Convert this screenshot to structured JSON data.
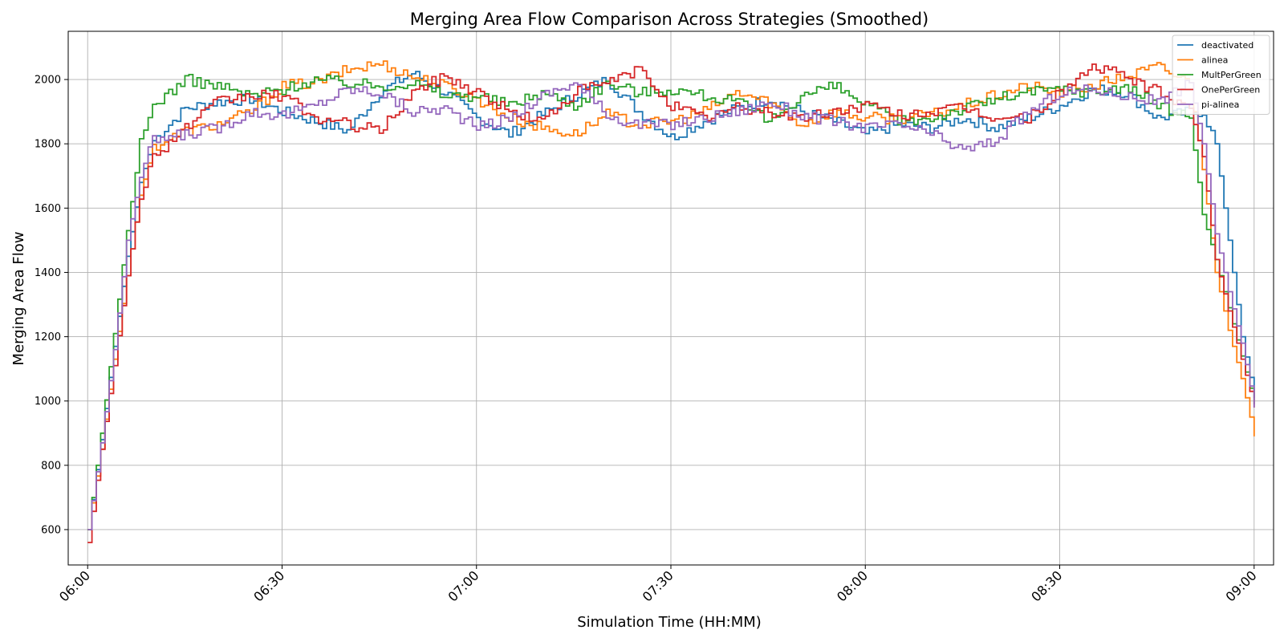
{
  "chart_data": {
    "type": "line",
    "step": true,
    "title": "Merging Area Flow Comparison Across Strategies (Smoothed)",
    "xlabel": "Simulation Time (HH:MM)",
    "ylabel": "Merging Area Flow",
    "x_ticks": [
      "06:00",
      "06:30",
      "07:00",
      "07:30",
      "08:00",
      "08:30",
      "09:00"
    ],
    "x_range_minutes": [
      -3,
      63,
      66,
      69,
      72,
      75,
      78
    ],
    "xlim": [
      "05:57",
      "09:03"
    ],
    "ylim": [
      490,
      2150
    ],
    "y_ticks": [
      600,
      800,
      1000,
      1200,
      1400,
      1600,
      1800,
      2000
    ],
    "grid": true,
    "legend_position": "top-right",
    "x_keys": [
      "06:00",
      "06:02",
      "06:04",
      "06:06",
      "06:08",
      "06:10",
      "06:15",
      "06:20",
      "06:25",
      "06:30",
      "06:35",
      "06:40",
      "06:45",
      "06:50",
      "06:55",
      "07:00",
      "07:05",
      "07:10",
      "07:15",
      "07:20",
      "07:25",
      "07:30",
      "07:35",
      "07:40",
      "07:45",
      "07:50",
      "07:55",
      "08:00",
      "08:05",
      "08:10",
      "08:15",
      "08:20",
      "08:25",
      "08:30",
      "08:35",
      "08:40",
      "08:45",
      "08:50",
      "08:52",
      "08:54",
      "08:56",
      "08:58",
      "09:00"
    ],
    "series": [
      {
        "name": "deactivated",
        "color": "#1f77b4",
        "values": [
          600,
          880,
          1170,
          1450,
          1680,
          1810,
          1910,
          1930,
          1940,
          1900,
          1870,
          1840,
          1960,
          2020,
          1960,
          1880,
          1830,
          1890,
          1950,
          2000,
          1900,
          1820,
          1870,
          1910,
          1940,
          1900,
          1870,
          1830,
          1860,
          1850,
          1880,
          1850,
          1880,
          1920,
          1970,
          1960,
          1880,
          1900,
          1900,
          1800,
          1500,
          1200,
          1010
        ]
      },
      {
        "name": "alinea",
        "color": "#ff7f0e",
        "values": [
          600,
          850,
          1130,
          1390,
          1640,
          1790,
          1840,
          1860,
          1900,
          1980,
          1990,
          2030,
          2050,
          2010,
          1980,
          1940,
          1880,
          1850,
          1830,
          1890,
          1860,
          1870,
          1900,
          1960,
          1930,
          1860,
          1900,
          1880,
          1880,
          1890,
          1920,
          1950,
          1980,
          1960,
          1980,
          2010,
          2040,
          1990,
          1720,
          1400,
          1220,
          1070,
          890
        ]
      },
      {
        "name": "MultPerGreen",
        "color": "#2ca02c",
        "values": [
          600,
          900,
          1210,
          1530,
          1800,
          1920,
          2000,
          1980,
          1950,
          1970,
          2000,
          1990,
          1980,
          1990,
          1950,
          1950,
          1920,
          1960,
          1920,
          1990,
          1960,
          1970,
          1950,
          1930,
          1870,
          1950,
          1980,
          1920,
          1870,
          1880,
          1910,
          1940,
          1960,
          1970,
          1960,
          1980,
          1920,
          1880,
          1580,
          1440,
          1290,
          1140,
          990
        ]
      },
      {
        "name": "OnePerGreen",
        "color": "#d62728",
        "values": [
          560,
          850,
          1110,
          1390,
          1640,
          1760,
          1850,
          1930,
          1950,
          1950,
          1880,
          1860,
          1840,
          1960,
          2010,
          1960,
          1900,
          1870,
          1960,
          1990,
          2030,
          1920,
          1880,
          1910,
          1900,
          1880,
          1900,
          1920,
          1890,
          1900,
          1910,
          1880,
          1880,
          1960,
          2040,
          2010,
          1960,
          1910,
          1760,
          1440,
          1280,
          1130,
          980
        ]
      },
      {
        "name": "pi-alinea",
        "color": "#9467bd",
        "values": [
          600,
          870,
          1160,
          1500,
          1700,
          1810,
          1830,
          1850,
          1900,
          1890,
          1920,
          1970,
          1960,
          1900,
          1910,
          1850,
          1880,
          1950,
          1990,
          1890,
          1860,
          1860,
          1880,
          1900,
          1930,
          1890,
          1870,
          1850,
          1860,
          1830,
          1780,
          1810,
          1900,
          1960,
          1970,
          1950,
          1930,
          1990,
          1800,
          1520,
          1340,
          1180,
          980
        ]
      }
    ]
  }
}
